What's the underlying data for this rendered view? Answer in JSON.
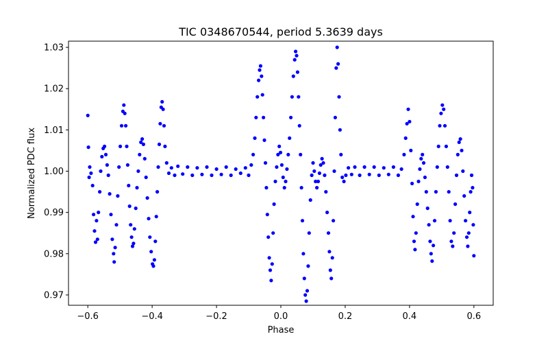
{
  "chart_data": {
    "type": "scatter",
    "title": "TIC 0348670544, period 5.3639 days",
    "xlabel": "Phase",
    "ylabel": "Normalized PDC flux",
    "xlim": [
      -0.66,
      0.66
    ],
    "ylim": [
      0.9675,
      1.0315
    ],
    "xticks": [
      -0.6,
      -0.4,
      -0.2,
      0.0,
      0.2,
      0.4,
      0.6
    ],
    "xtick_labels": [
      "−0.6",
      "−0.4",
      "−0.2",
      "0.0",
      "0.2",
      "0.4",
      "0.6"
    ],
    "yticks": [
      0.97,
      0.98,
      0.99,
      1.0,
      1.01,
      1.02,
      1.03
    ],
    "ytick_labels": [
      "0.97",
      "0.98",
      "0.99",
      "1.00",
      "1.01",
      "1.02",
      "1.03"
    ],
    "grid": false,
    "marker_color": "#0000ff",
    "points": [
      [
        -0.6,
        1.0135
      ],
      [
        -0.598,
        1.0058
      ],
      [
        -0.596,
        0.9985
      ],
      [
        -0.594,
        1.001
      ],
      [
        -0.59,
        0.9995
      ],
      [
        -0.585,
        0.9965
      ],
      [
        -0.582,
        0.9895
      ],
      [
        -0.579,
        0.9855
      ],
      [
        -0.576,
        0.9828
      ],
      [
        -0.573,
        0.988
      ],
      [
        -0.57,
        0.9835
      ],
      [
        -0.567,
        0.99
      ],
      [
        -0.563,
        0.995
      ],
      [
        -0.56,
        1.0
      ],
      [
        -0.556,
        1.0035
      ],
      [
        -0.552,
        1.0055
      ],
      [
        -0.548,
        1.006
      ],
      [
        -0.544,
        1.004
      ],
      [
        -0.54,
        1.0015
      ],
      [
        -0.536,
        0.999
      ],
      [
        -0.532,
        0.9945
      ],
      [
        -0.528,
        0.9895
      ],
      [
        -0.524,
        0.9835
      ],
      [
        -0.52,
        0.98
      ],
      [
        -0.518,
        0.978
      ],
      [
        -0.515,
        0.9815
      ],
      [
        -0.511,
        0.987
      ],
      [
        -0.507,
        0.994
      ],
      [
        -0.503,
        1.001
      ],
      [
        -0.499,
        1.006
      ],
      [
        -0.495,
        1.011
      ],
      [
        -0.491,
        1.0145
      ],
      [
        -0.488,
        1.016
      ],
      [
        -0.485,
        1.014
      ],
      [
        -0.482,
        1.011
      ],
      [
        -0.479,
        1.006
      ],
      [
        -0.476,
        1.0015
      ],
      [
        -0.473,
        0.9965
      ],
      [
        -0.47,
        0.9915
      ],
      [
        -0.467,
        0.987
      ],
      [
        -0.464,
        0.984
      ],
      [
        -0.461,
        0.9818
      ],
      [
        -0.458,
        0.9825
      ],
      [
        -0.455,
        0.986
      ],
      [
        -0.451,
        0.991
      ],
      [
        -0.447,
        0.996
      ],
      [
        -0.443,
        1.0
      ],
      [
        -0.439,
        1.004
      ],
      [
        -0.435,
        1.007
      ],
      [
        -0.431,
        1.0078
      ],
      [
        -0.427,
        1.0065
      ],
      [
        -0.423,
        1.003
      ],
      [
        -0.419,
        0.9985
      ],
      [
        -0.415,
        0.9935
      ],
      [
        -0.411,
        0.9885
      ],
      [
        -0.407,
        0.984
      ],
      [
        -0.403,
        0.9805
      ],
      [
        -0.399,
        0.9775
      ],
      [
        -0.396,
        0.977
      ],
      [
        -0.393,
        0.9785
      ],
      [
        -0.39,
        0.983
      ],
      [
        -0.387,
        0.989
      ],
      [
        -0.384,
        0.995
      ],
      [
        -0.381,
        1.001
      ],
      [
        -0.378,
        1.0065
      ],
      [
        -0.375,
        1.0115
      ],
      [
        -0.372,
        1.0155
      ],
      [
        -0.369,
        1.0168
      ],
      [
        -0.366,
        1.015
      ],
      [
        -0.363,
        1.011
      ],
      [
        -0.36,
        1.006
      ],
      [
        -0.355,
        1.002
      ],
      [
        -0.348,
        0.9995
      ],
      [
        -0.34,
        1.0008
      ],
      [
        -0.33,
        0.999
      ],
      [
        -0.32,
        1.0012
      ],
      [
        -0.305,
        0.9993
      ],
      [
        -0.29,
        1.001
      ],
      [
        -0.275,
        0.999
      ],
      [
        -0.26,
        1.0008
      ],
      [
        -0.245,
        0.9992
      ],
      [
        -0.23,
        1.001
      ],
      [
        -0.215,
        0.999
      ],
      [
        -0.2,
        1.0005
      ],
      [
        -0.185,
        0.9992
      ],
      [
        -0.17,
        1.001
      ],
      [
        -0.155,
        0.999
      ],
      [
        -0.14,
        1.0005
      ],
      [
        -0.125,
        0.9995
      ],
      [
        -0.11,
        1.0008
      ],
      [
        -0.1,
        0.999
      ],
      [
        -0.092,
        1.0015
      ],
      [
        -0.086,
        1.004
      ],
      [
        -0.081,
        1.008
      ],
      [
        -0.077,
        1.013
      ],
      [
        -0.073,
        1.018
      ],
      [
        -0.069,
        1.022
      ],
      [
        -0.066,
        1.0245
      ],
      [
        -0.063,
        1.0255
      ],
      [
        -0.06,
        1.023
      ],
      [
        -0.057,
        1.0185
      ],
      [
        -0.054,
        1.013
      ],
      [
        -0.051,
        1.0075
      ],
      [
        -0.048,
        1.002
      ],
      [
        -0.045,
        0.996
      ],
      [
        -0.042,
        0.9895
      ],
      [
        -0.039,
        0.984
      ],
      [
        -0.036,
        0.979
      ],
      [
        -0.033,
        0.976
      ],
      [
        -0.03,
        0.9735
      ],
      [
        -0.027,
        0.9775
      ],
      [
        -0.024,
        0.985
      ],
      [
        -0.021,
        0.992
      ],
      [
        -0.017,
        0.9975
      ],
      [
        -0.013,
        1.001
      ],
      [
        -0.009,
        1.004
      ],
      [
        -0.005,
        1.006
      ],
      [
        -0.001,
        1.0045
      ],
      [
        0.003,
        1.0015
      ],
      [
        0.007,
        0.9985
      ],
      [
        0.011,
        0.996
      ],
      [
        0.015,
        0.9975
      ],
      [
        0.019,
        1.0005
      ],
      [
        0.023,
        1.004
      ],
      [
        0.027,
        1.008
      ],
      [
        0.031,
        1.013
      ],
      [
        0.035,
        1.018
      ],
      [
        0.039,
        1.023
      ],
      [
        0.043,
        1.027
      ],
      [
        0.046,
        1.029
      ],
      [
        0.049,
        1.028
      ],
      [
        0.052,
        1.024
      ],
      [
        0.055,
        1.018
      ],
      [
        0.058,
        1.011
      ],
      [
        0.061,
        1.004
      ],
      [
        0.064,
        0.996
      ],
      [
        0.067,
        0.988
      ],
      [
        0.07,
        0.98
      ],
      [
        0.073,
        0.974
      ],
      [
        0.076,
        0.97
      ],
      [
        0.079,
        0.9685
      ],
      [
        0.082,
        0.971
      ],
      [
        0.085,
        0.977
      ],
      [
        0.088,
        0.985
      ],
      [
        0.092,
        0.993
      ],
      [
        0.096,
        0.999
      ],
      [
        0.1,
        1.002
      ],
      [
        0.104,
        1.0
      ],
      [
        0.108,
        0.9975
      ],
      [
        0.112,
        0.996
      ],
      [
        0.116,
        0.9975
      ],
      [
        0.12,
        0.9995
      ],
      [
        0.124,
        1.0015
      ],
      [
        0.128,
        1.003
      ],
      [
        0.132,
        1.002
      ],
      [
        0.136,
        0.999
      ],
      [
        0.14,
        0.995
      ],
      [
        0.144,
        0.99
      ],
      [
        0.148,
        0.985
      ],
      [
        0.151,
        0.9805
      ],
      [
        0.154,
        0.976
      ],
      [
        0.157,
        0.974
      ],
      [
        0.16,
        0.979
      ],
      [
        0.163,
        0.988
      ],
      [
        0.166,
        1.0
      ],
      [
        0.169,
        1.013
      ],
      [
        0.172,
        1.025
      ],
      [
        0.175,
        1.03
      ],
      [
        0.178,
        1.026
      ],
      [
        0.181,
        1.018
      ],
      [
        0.184,
        1.01
      ],
      [
        0.187,
        1.004
      ],
      [
        0.191,
        0.9985
      ],
      [
        0.196,
        0.9975
      ],
      [
        0.202,
        0.999
      ],
      [
        0.21,
        1.0008
      ],
      [
        0.22,
        0.9992
      ],
      [
        0.23,
        1.001
      ],
      [
        0.245,
        0.999
      ],
      [
        0.26,
        1.001
      ],
      [
        0.275,
        0.9992
      ],
      [
        0.29,
        1.001
      ],
      [
        0.305,
        0.999
      ],
      [
        0.32,
        1.0008
      ],
      [
        0.335,
        0.9992
      ],
      [
        0.35,
        1.001
      ],
      [
        0.365,
        0.999
      ],
      [
        0.375,
        1.0005
      ],
      [
        0.383,
        1.004
      ],
      [
        0.388,
        1.008
      ],
      [
        0.392,
        1.0115
      ],
      [
        0.396,
        1.015
      ],
      [
        0.4,
        1.012
      ],
      [
        0.404,
        1.005
      ],
      [
        0.408,
        0.997
      ],
      [
        0.411,
        0.989
      ],
      [
        0.414,
        0.983
      ],
      [
        0.417,
        0.981
      ],
      [
        0.42,
        0.985
      ],
      [
        0.424,
        0.992
      ],
      [
        0.428,
        0.9975
      ],
      [
        0.432,
        1.0005
      ],
      [
        0.436,
        1.003
      ],
      [
        0.44,
        1.004
      ],
      [
        0.444,
        1.002
      ],
      [
        0.448,
        0.9985
      ],
      [
        0.452,
        0.995
      ],
      [
        0.456,
        0.991
      ],
      [
        0.46,
        0.987
      ],
      [
        0.464,
        0.983
      ],
      [
        0.467,
        0.98
      ],
      [
        0.47,
        0.9782
      ],
      [
        0.474,
        0.982
      ],
      [
        0.478,
        0.988
      ],
      [
        0.482,
        0.995
      ],
      [
        0.486,
        1.001
      ],
      [
        0.49,
        1.006
      ],
      [
        0.494,
        1.011
      ],
      [
        0.498,
        1.014
      ],
      [
        0.502,
        1.016
      ],
      [
        0.506,
        1.015
      ],
      [
        0.51,
        1.011
      ],
      [
        0.514,
        1.006
      ],
      [
        0.518,
        1.001
      ],
      [
        0.522,
        0.995
      ],
      [
        0.526,
        0.988
      ],
      [
        0.53,
        0.983
      ],
      [
        0.534,
        0.9818
      ],
      [
        0.538,
        0.985
      ],
      [
        0.542,
        0.992
      ],
      [
        0.546,
        0.999
      ],
      [
        0.55,
        1.004
      ],
      [
        0.554,
        1.007
      ],
      [
        0.558,
        1.0078
      ],
      [
        0.562,
        1.005
      ],
      [
        0.566,
        1.0
      ],
      [
        0.57,
        0.994
      ],
      [
        0.574,
        0.988
      ],
      [
        0.578,
        0.984
      ],
      [
        0.581,
        0.9818
      ],
      [
        0.584,
        0.985
      ],
      [
        0.587,
        0.99
      ],
      [
        0.59,
        0.995
      ],
      [
        0.593,
        0.999
      ],
      [
        0.596,
        0.996
      ],
      [
        0.598,
        0.987
      ],
      [
        0.6,
        0.9795
      ]
    ]
  }
}
